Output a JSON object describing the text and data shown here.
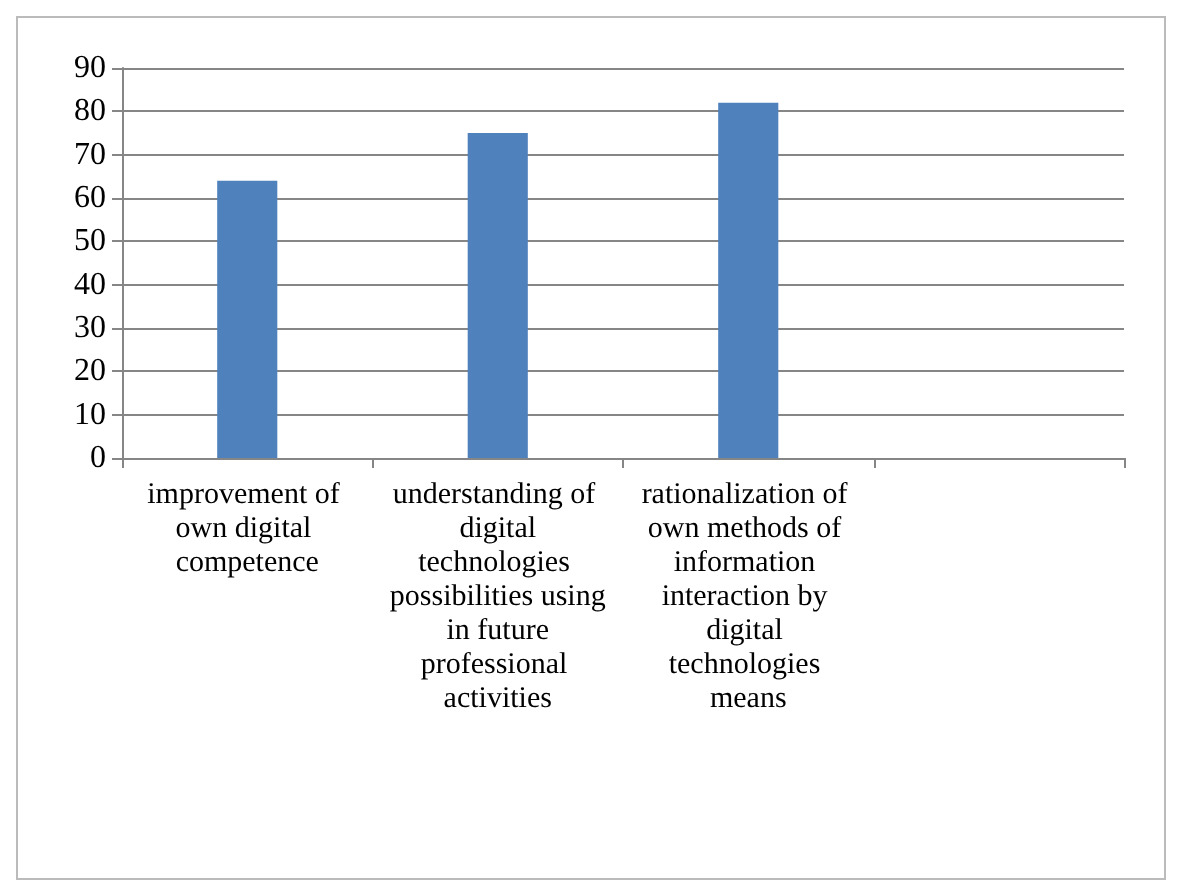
{
  "chart_data": {
    "type": "bar",
    "categories": [
      "improvement of own digital competence",
      "understanding of  digital technologies possibilities using in future professional activities",
      "rationalization of own methods of information interaction by digital technologies means",
      null
    ],
    "values": [
      64,
      75,
      82,
      null
    ],
    "color": "#4f81bd",
    "ylim": [
      0,
      90
    ],
    "yticks": [
      0,
      10,
      20,
      30,
      40,
      50,
      60,
      70,
      80,
      90
    ],
    "grid": "y"
  }
}
